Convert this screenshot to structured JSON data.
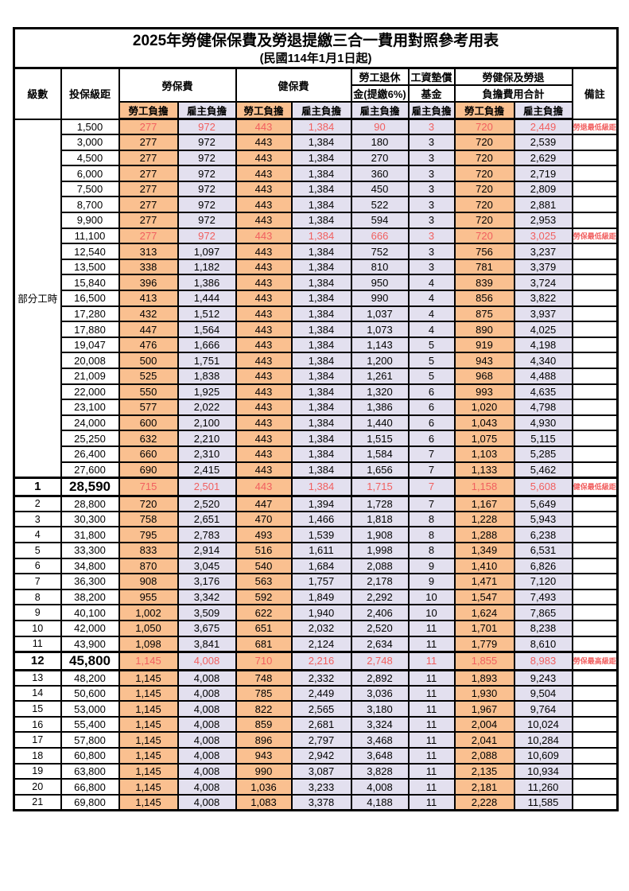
{
  "title": "2025年勞健保保費及勞退提繳三合一費用對照參考用表",
  "subtitle": "(民國114年1月1日起)",
  "colors": {
    "employee_bg": "#FAC090",
    "employer_bg": "#E3E0EF",
    "highlight_text": "#F15F5F",
    "border": "#000000"
  },
  "header": {
    "level": "級數",
    "bracket": "投保級距",
    "labor_ins": "勞保費",
    "health_ins": "健保費",
    "pension_line1": "勞工退休",
    "pension_line2": "金(提繳6%)",
    "wage_fund_line1": "工資墊償",
    "wage_fund_line2": "基金",
    "total_line1": "勞健保及勞退",
    "total_line2": "負擔費用合計",
    "remark": "備註",
    "employee": "勞工負擔",
    "employer": "雇主負擔"
  },
  "part_time": {
    "label": "部分工時",
    "row_span": 23
  },
  "rows": [
    {
      "bracket": "1,500",
      "v": [
        "277",
        "972",
        "443",
        "1,384",
        "90",
        "3",
        "720",
        "2,449"
      ],
      "remark": "勞退最低級距",
      "hl": true
    },
    {
      "bracket": "3,000",
      "v": [
        "277",
        "972",
        "443",
        "1,384",
        "180",
        "3",
        "720",
        "2,539"
      ],
      "remark": ""
    },
    {
      "bracket": "4,500",
      "v": [
        "277",
        "972",
        "443",
        "1,384",
        "270",
        "3",
        "720",
        "2,629"
      ],
      "remark": ""
    },
    {
      "bracket": "6,000",
      "v": [
        "277",
        "972",
        "443",
        "1,384",
        "360",
        "3",
        "720",
        "2,719"
      ],
      "remark": ""
    },
    {
      "bracket": "7,500",
      "v": [
        "277",
        "972",
        "443",
        "1,384",
        "450",
        "3",
        "720",
        "2,809"
      ],
      "remark": ""
    },
    {
      "bracket": "8,700",
      "v": [
        "277",
        "972",
        "443",
        "1,384",
        "522",
        "3",
        "720",
        "2,881"
      ],
      "remark": ""
    },
    {
      "bracket": "9,900",
      "v": [
        "277",
        "972",
        "443",
        "1,384",
        "594",
        "3",
        "720",
        "2,953"
      ],
      "remark": ""
    },
    {
      "bracket": "11,100",
      "v": [
        "277",
        "972",
        "443",
        "1,384",
        "666",
        "3",
        "720",
        "3,025"
      ],
      "remark": "勞保最低級距",
      "hl": true
    },
    {
      "bracket": "12,540",
      "v": [
        "313",
        "1,097",
        "443",
        "1,384",
        "752",
        "3",
        "756",
        "3,237"
      ],
      "remark": ""
    },
    {
      "bracket": "13,500",
      "v": [
        "338",
        "1,182",
        "443",
        "1,384",
        "810",
        "3",
        "781",
        "3,379"
      ],
      "remark": ""
    },
    {
      "bracket": "15,840",
      "v": [
        "396",
        "1,386",
        "443",
        "1,384",
        "950",
        "4",
        "839",
        "3,724"
      ],
      "remark": ""
    },
    {
      "bracket": "16,500",
      "v": [
        "413",
        "1,444",
        "443",
        "1,384",
        "990",
        "4",
        "856",
        "3,822"
      ],
      "remark": ""
    },
    {
      "bracket": "17,280",
      "v": [
        "432",
        "1,512",
        "443",
        "1,384",
        "1,037",
        "4",
        "875",
        "3,937"
      ],
      "remark": ""
    },
    {
      "bracket": "17,880",
      "v": [
        "447",
        "1,564",
        "443",
        "1,384",
        "1,073",
        "4",
        "890",
        "4,025"
      ],
      "remark": ""
    },
    {
      "bracket": "19,047",
      "v": [
        "476",
        "1,666",
        "443",
        "1,384",
        "1,143",
        "5",
        "919",
        "4,198"
      ],
      "remark": ""
    },
    {
      "bracket": "20,008",
      "v": [
        "500",
        "1,751",
        "443",
        "1,384",
        "1,200",
        "5",
        "943",
        "4,340"
      ],
      "remark": ""
    },
    {
      "bracket": "21,009",
      "v": [
        "525",
        "1,838",
        "443",
        "1,384",
        "1,261",
        "5",
        "968",
        "4,488"
      ],
      "remark": ""
    },
    {
      "bracket": "22,000",
      "v": [
        "550",
        "1,925",
        "443",
        "1,384",
        "1,320",
        "6",
        "993",
        "4,635"
      ],
      "remark": ""
    },
    {
      "bracket": "23,100",
      "v": [
        "577",
        "2,022",
        "443",
        "1,384",
        "1,386",
        "6",
        "1,020",
        "4,798"
      ],
      "remark": ""
    },
    {
      "bracket": "24,000",
      "v": [
        "600",
        "2,100",
        "443",
        "1,384",
        "1,440",
        "6",
        "1,043",
        "4,930"
      ],
      "remark": ""
    },
    {
      "bracket": "25,250",
      "v": [
        "632",
        "2,210",
        "443",
        "1,384",
        "1,515",
        "6",
        "1,075",
        "5,115"
      ],
      "remark": ""
    },
    {
      "bracket": "26,400",
      "v": [
        "660",
        "2,310",
        "443",
        "1,384",
        "1,584",
        "7",
        "1,103",
        "5,285"
      ],
      "remark": ""
    },
    {
      "bracket": "27,600",
      "v": [
        "690",
        "2,415",
        "443",
        "1,384",
        "1,656",
        "7",
        "1,133",
        "5,462"
      ],
      "remark": ""
    },
    {
      "level": "1",
      "bracket": "28,590",
      "v": [
        "715",
        "2,501",
        "443",
        "1,384",
        "1,715",
        "7",
        "1,158",
        "5,608"
      ],
      "remark": "健保最低級距",
      "hl": true,
      "big": true
    },
    {
      "level": "2",
      "bracket": "28,800",
      "v": [
        "720",
        "2,520",
        "447",
        "1,394",
        "1,728",
        "7",
        "1,167",
        "5,649"
      ],
      "remark": ""
    },
    {
      "level": "3",
      "bracket": "30,300",
      "v": [
        "758",
        "2,651",
        "470",
        "1,466",
        "1,818",
        "8",
        "1,228",
        "5,943"
      ],
      "remark": ""
    },
    {
      "level": "4",
      "bracket": "31,800",
      "v": [
        "795",
        "2,783",
        "493",
        "1,539",
        "1,908",
        "8",
        "1,288",
        "6,238"
      ],
      "remark": ""
    },
    {
      "level": "5",
      "bracket": "33,300",
      "v": [
        "833",
        "2,914",
        "516",
        "1,611",
        "1,998",
        "8",
        "1,349",
        "6,531"
      ],
      "remark": ""
    },
    {
      "level": "6",
      "bracket": "34,800",
      "v": [
        "870",
        "3,045",
        "540",
        "1,684",
        "2,088",
        "9",
        "1,410",
        "6,826"
      ],
      "remark": ""
    },
    {
      "level": "7",
      "bracket": "36,300",
      "v": [
        "908",
        "3,176",
        "563",
        "1,757",
        "2,178",
        "9",
        "1,471",
        "7,120"
      ],
      "remark": ""
    },
    {
      "level": "8",
      "bracket": "38,200",
      "v": [
        "955",
        "3,342",
        "592",
        "1,849",
        "2,292",
        "10",
        "1,547",
        "7,493"
      ],
      "remark": ""
    },
    {
      "level": "9",
      "bracket": "40,100",
      "v": [
        "1,002",
        "3,509",
        "622",
        "1,940",
        "2,406",
        "10",
        "1,624",
        "7,865"
      ],
      "remark": ""
    },
    {
      "level": "10",
      "bracket": "42,000",
      "v": [
        "1,050",
        "3,675",
        "651",
        "2,032",
        "2,520",
        "11",
        "1,701",
        "8,238"
      ],
      "remark": ""
    },
    {
      "level": "11",
      "bracket": "43,900",
      "v": [
        "1,098",
        "3,841",
        "681",
        "2,124",
        "2,634",
        "11",
        "1,779",
        "8,610"
      ],
      "remark": ""
    },
    {
      "level": "12",
      "bracket": "45,800",
      "v": [
        "1,145",
        "4,008",
        "710",
        "2,216",
        "2,748",
        "11",
        "1,855",
        "8,983"
      ],
      "remark": "勞保最高級距",
      "hl": true,
      "big": true
    },
    {
      "level": "13",
      "bracket": "48,200",
      "v": [
        "1,145",
        "4,008",
        "748",
        "2,332",
        "2,892",
        "11",
        "1,893",
        "9,243"
      ],
      "remark": ""
    },
    {
      "level": "14",
      "bracket": "50,600",
      "v": [
        "1,145",
        "4,008",
        "785",
        "2,449",
        "3,036",
        "11",
        "1,930",
        "9,504"
      ],
      "remark": ""
    },
    {
      "level": "15",
      "bracket": "53,000",
      "v": [
        "1,145",
        "4,008",
        "822",
        "2,565",
        "3,180",
        "11",
        "1,967",
        "9,764"
      ],
      "remark": ""
    },
    {
      "level": "16",
      "bracket": "55,400",
      "v": [
        "1,145",
        "4,008",
        "859",
        "2,681",
        "3,324",
        "11",
        "2,004",
        "10,024"
      ],
      "remark": ""
    },
    {
      "level": "17",
      "bracket": "57,800",
      "v": [
        "1,145",
        "4,008",
        "896",
        "2,797",
        "3,468",
        "11",
        "2,041",
        "10,284"
      ],
      "remark": ""
    },
    {
      "level": "18",
      "bracket": "60,800",
      "v": [
        "1,145",
        "4,008",
        "943",
        "2,942",
        "3,648",
        "11",
        "2,088",
        "10,609"
      ],
      "remark": ""
    },
    {
      "level": "19",
      "bracket": "63,800",
      "v": [
        "1,145",
        "4,008",
        "990",
        "3,087",
        "3,828",
        "11",
        "2,135",
        "10,934"
      ],
      "remark": ""
    },
    {
      "level": "20",
      "bracket": "66,800",
      "v": [
        "1,145",
        "4,008",
        "1,036",
        "3,233",
        "4,008",
        "11",
        "2,181",
        "11,260"
      ],
      "remark": ""
    },
    {
      "level": "21",
      "bracket": "69,800",
      "v": [
        "1,145",
        "4,008",
        "1,083",
        "3,378",
        "4,188",
        "11",
        "2,228",
        "11,585"
      ],
      "remark": ""
    }
  ]
}
